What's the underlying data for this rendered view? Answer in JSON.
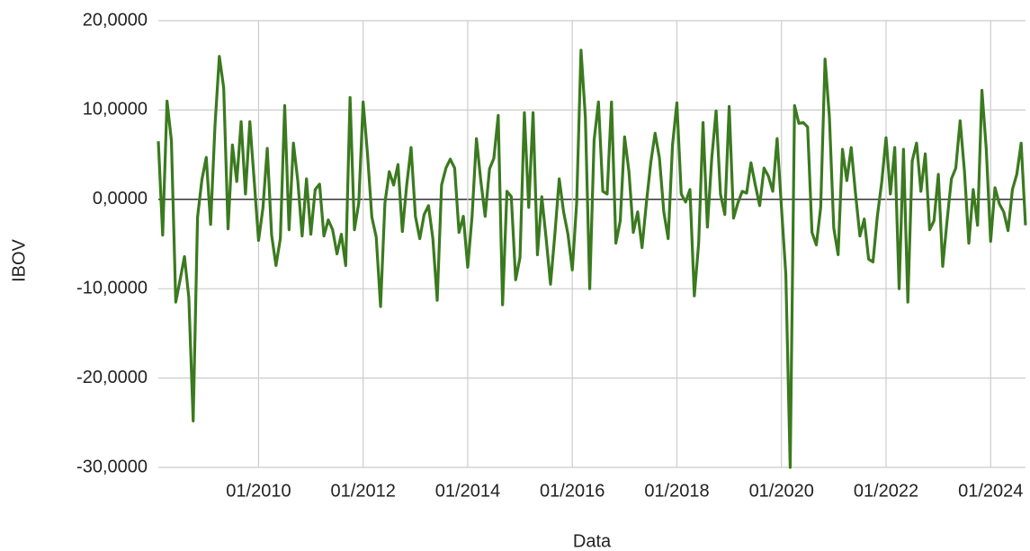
{
  "chart_data": {
    "type": "line",
    "x_label": "Data",
    "y_label": "IBOV",
    "x": [
      "02/2008",
      "03/2008",
      "04/2008",
      "05/2008",
      "06/2008",
      "07/2008",
      "08/2008",
      "09/2008",
      "10/2008",
      "11/2008",
      "12/2008",
      "01/2009",
      "02/2009",
      "03/2009",
      "04/2009",
      "05/2009",
      "06/2009",
      "07/2009",
      "08/2009",
      "09/2009",
      "10/2009",
      "11/2009",
      "12/2009",
      "01/2010",
      "02/2010",
      "03/2010",
      "04/2010",
      "05/2010",
      "06/2010",
      "07/2010",
      "08/2010",
      "09/2010",
      "10/2010",
      "11/2010",
      "12/2010",
      "01/2011",
      "02/2011",
      "03/2011",
      "04/2011",
      "05/2011",
      "06/2011",
      "07/2011",
      "08/2011",
      "09/2011",
      "10/2011",
      "11/2011",
      "12/2011",
      "01/2012",
      "02/2012",
      "03/2012",
      "04/2012",
      "05/2012",
      "06/2012",
      "07/2012",
      "08/2012",
      "09/2012",
      "10/2012",
      "11/2012",
      "12/2012",
      "01/2013",
      "02/2013",
      "03/2013",
      "04/2013",
      "05/2013",
      "06/2013",
      "07/2013",
      "08/2013",
      "09/2013",
      "10/2013",
      "11/2013",
      "12/2013",
      "01/2014",
      "02/2014",
      "03/2014",
      "04/2014",
      "05/2014",
      "06/2014",
      "07/2014",
      "08/2014",
      "09/2014",
      "10/2014",
      "11/2014",
      "12/2014",
      "01/2015",
      "02/2015",
      "03/2015",
      "04/2015",
      "05/2015",
      "06/2015",
      "07/2015",
      "08/2015",
      "09/2015",
      "10/2015",
      "11/2015",
      "12/2015",
      "01/2016",
      "02/2016",
      "03/2016",
      "04/2016",
      "05/2016",
      "06/2016",
      "07/2016",
      "08/2016",
      "09/2016",
      "10/2016",
      "11/2016",
      "12/2016",
      "01/2017",
      "02/2017",
      "03/2017",
      "04/2017",
      "05/2017",
      "06/2017",
      "07/2017",
      "08/2017",
      "09/2017",
      "10/2017",
      "11/2017",
      "12/2017",
      "01/2018",
      "02/2018",
      "03/2018",
      "04/2018",
      "05/2018",
      "06/2018",
      "07/2018",
      "08/2018",
      "09/2018",
      "10/2018",
      "11/2018",
      "12/2018",
      "01/2019",
      "02/2019",
      "03/2019",
      "04/2019",
      "05/2019",
      "06/2019",
      "07/2019",
      "08/2019",
      "09/2019",
      "10/2019",
      "11/2019",
      "12/2019",
      "01/2020",
      "02/2020",
      "03/2020",
      "04/2020",
      "05/2020",
      "06/2020",
      "07/2020",
      "08/2020",
      "09/2020",
      "10/2020",
      "11/2020",
      "12/2020",
      "01/2021",
      "02/2021",
      "03/2021",
      "04/2021",
      "05/2021",
      "06/2021",
      "07/2021",
      "08/2021",
      "09/2021",
      "10/2021",
      "11/2021",
      "12/2021",
      "01/2022",
      "02/2022",
      "03/2022",
      "04/2022",
      "05/2022",
      "06/2022",
      "07/2022",
      "08/2022",
      "09/2022",
      "10/2022",
      "11/2022",
      "12/2022",
      "01/2023",
      "02/2023",
      "03/2023",
      "04/2023",
      "05/2023",
      "06/2023",
      "07/2023",
      "08/2023",
      "09/2023",
      "10/2023",
      "11/2023",
      "12/2023",
      "01/2024",
      "02/2024",
      "03/2024",
      "04/2024",
      "05/2024",
      "06/2024",
      "07/2024",
      "08/2024",
      "09/2024"
    ],
    "series": [
      {
        "name": "IBOV",
        "color": "#3b7a1f",
        "values": [
          6.5,
          -4,
          11,
          6.6,
          -11.5,
          -9,
          -6.4,
          -11,
          -24.8,
          -2,
          2.2,
          4.7,
          -2.8,
          8.2,
          16,
          12.5,
          -3.3,
          6.1,
          2,
          8.7,
          0.6,
          8.7,
          2.1,
          -4.6,
          -1,
          5.7,
          -4,
          -7.4,
          -4.4,
          10.5,
          -3.4,
          6.3,
          2.1,
          -4.1,
          2.3,
          -3.9,
          1.1,
          1.7,
          -4.1,
          -2.3,
          -3.4,
          -6.1,
          -3.9,
          -7.4,
          11.4,
          -3.4,
          -0.4,
          10.9,
          5.1,
          -2,
          -4.2,
          -12,
          -0.4,
          3.1,
          1.6,
          3.9,
          -3.6,
          1.6,
          5.8,
          -1.9,
          -4.4,
          -1.7,
          -0.7,
          -4.4,
          -11.3,
          1.6,
          3.5,
          4.5,
          3.5,
          -3.7,
          -1.9,
          -7.6,
          -1.9,
          6.8,
          2.1,
          -1.9,
          3.4,
          4.6,
          9.4,
          -11.8,
          0.9,
          0.3,
          -9,
          -6.5,
          9.7,
          -0.9,
          9.7,
          -6.2,
          0.3,
          -4.4,
          -9.5,
          -3.9,
          2.3,
          -1.4,
          -3.9,
          -7.9,
          -0.4,
          16.7,
          9.2,
          -10,
          6.6,
          10.9,
          0.9,
          0.6,
          10.9,
          -4.9,
          -2.4,
          7,
          3.1,
          -3.7,
          -1.4,
          -5.4,
          -0.4,
          4.1,
          7.4,
          4.6,
          -1.4,
          -4.4,
          6.1,
          10.8,
          0.6,
          -0.3,
          1.1,
          -10.8,
          -4.9,
          8.6,
          -3.1,
          4.6,
          9.9,
          0.6,
          -1.7,
          10.4,
          -2.1,
          -0.4,
          0.9,
          0.7,
          4.1,
          1.6,
          -0.7,
          3.5,
          2.6,
          0.9,
          6.8,
          -0.9,
          -8.4,
          -30,
          10.5,
          8.5,
          8.6,
          8.1,
          -3.7,
          -5.1,
          -0.9,
          15.7,
          9.2,
          -3.2,
          -6.2,
          5.6,
          2.1,
          5.8,
          0.6,
          -4.1,
          -2.2,
          -6.7,
          -7,
          -1.9,
          1.9,
          6.9,
          0.6,
          5.8,
          -10,
          5.6,
          -11.5,
          4.3,
          6.3,
          0.9,
          5.1,
          -3.4,
          -2.4,
          2.8,
          -7.5,
          -2.4,
          2.3,
          3.5,
          8.8,
          3.1,
          -4.9,
          1.1,
          -2.9,
          12.2,
          5.6,
          -4.7,
          1.3,
          -0.5,
          -1.4,
          -3.5,
          1.1,
          2.8,
          6.3,
          -2.9
        ]
      }
    ],
    "xlim": [
      "02/2008",
      "09/2024"
    ],
    "xticks": [
      "01/2010",
      "01/2012",
      "01/2014",
      "01/2016",
      "01/2018",
      "01/2020",
      "01/2022",
      "01/2024"
    ],
    "ylim": [
      -30,
      20
    ],
    "yticks": [
      {
        "value": -30,
        "label": "-30,0000"
      },
      {
        "value": -20,
        "label": "-20,0000"
      },
      {
        "value": -10,
        "label": "-10,0000"
      },
      {
        "value": 0,
        "label": "0,0000"
      },
      {
        "value": 10,
        "label": "10,0000"
      },
      {
        "value": 20,
        "label": "20,0000"
      }
    ],
    "grid": true
  }
}
